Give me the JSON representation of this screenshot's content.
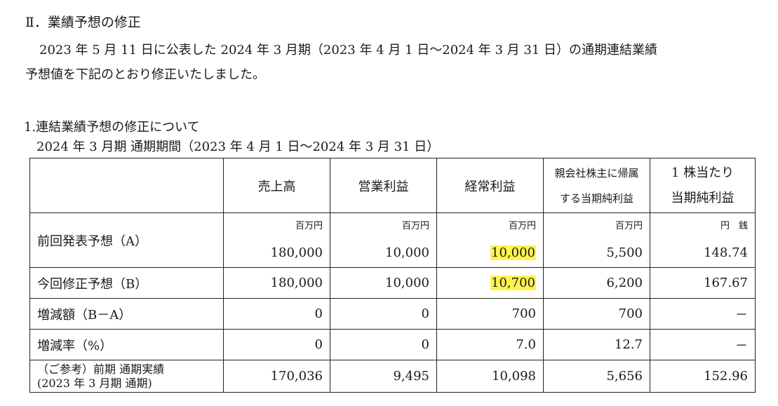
{
  "section_title": "Ⅱ．業績予想の修正",
  "intro_line1": "2023 年 5 月 11 日に公表した 2024 年 3 月期（2023 年 4 月 1 日～2024 年 3 月 31 日）の通期連結業績",
  "intro_line2": "予想値を下記のとおり修正いたしました。",
  "sub_heading": "1.連結業績予想の修正について",
  "period_line": "2024 年 3 月期 通期期間（2023 年 4 月 1 日～2024 年 3 月 31 日）",
  "highlight_color": "#fff34d",
  "table": {
    "headers": {
      "sales": "売上高",
      "operating_income": "営業利益",
      "ordinary_income": "経常利益",
      "net_income_line1": "親会社株主に帰属",
      "net_income_line2": "する当期純利益",
      "eps_line1": "1 株当たり",
      "eps_line2": "当期純利益"
    },
    "units": {
      "million_yen": "百万円",
      "yen_sen": "円　銭"
    },
    "rows": {
      "previous": {
        "label": "前回発表予想（A）",
        "sales": "180,000",
        "operating_income": "10,000",
        "ordinary_income": "10,000",
        "net_income": "5,500",
        "eps": "148.74"
      },
      "revised": {
        "label": "今回修正予想（B）",
        "sales": "180,000",
        "operating_income": "10,000",
        "ordinary_income": "10,700",
        "net_income": "6,200",
        "eps": "167.67"
      },
      "change_amount": {
        "label": "増減額（B－A）",
        "sales": "0",
        "operating_income": "0",
        "ordinary_income": "700",
        "net_income": "700",
        "eps": "－"
      },
      "change_rate": {
        "label": "増減率（%）",
        "sales": "0",
        "operating_income": "0",
        "ordinary_income": "7.0",
        "net_income": "12.7",
        "eps": "－"
      },
      "reference": {
        "label_line1": "（ご参考）前期 通期実績",
        "label_line2": "(2023 年 3 月期 通期)",
        "sales": "170,036",
        "operating_income": "9,495",
        "ordinary_income": "10,098",
        "net_income": "5,656",
        "eps": "152.96"
      }
    }
  }
}
